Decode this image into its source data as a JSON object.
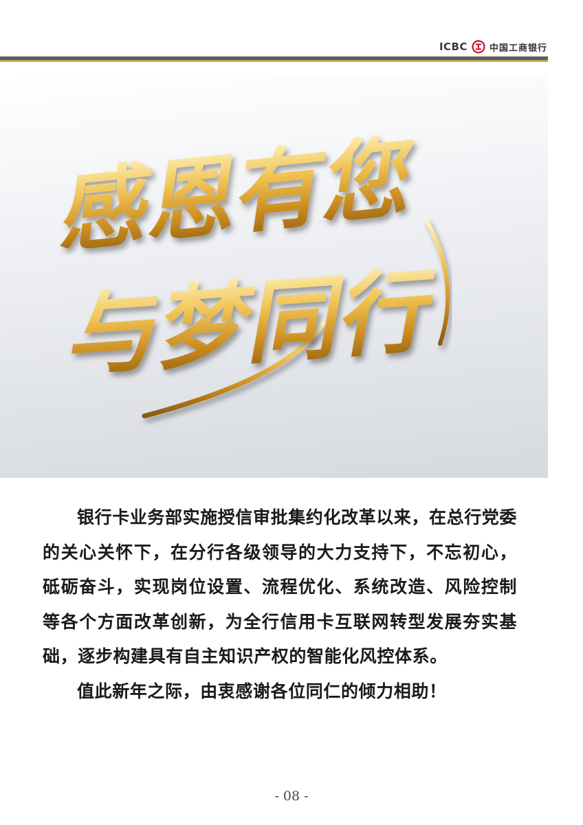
{
  "header": {
    "brand_short": "ICBC",
    "brand_name": "中国工商银行",
    "accent_grey": "#555555",
    "accent_gold": "#c9a24a"
  },
  "banner": {
    "line1": "感恩有您",
    "line2": "与梦同行",
    "text_color": "#e0b040"
  },
  "body": {
    "paragraphs": [
      "银行卡业务部实施授信审批集约化改革以来，在总行党委的关心关怀下，在分行各级领导的大力支持下，不忘初心，砥砺奋斗，实现岗位设置、流程优化、系统改造、风险控制等各个方面改革创新，为全行信用卡互联网转型发展夯实基础，逐步构建具有自主知识产权的智能化风控体系。",
      "值此新年之际，由衷感谢各位同仁的倾力相助！"
    ]
  },
  "page_number": "- 08 -"
}
